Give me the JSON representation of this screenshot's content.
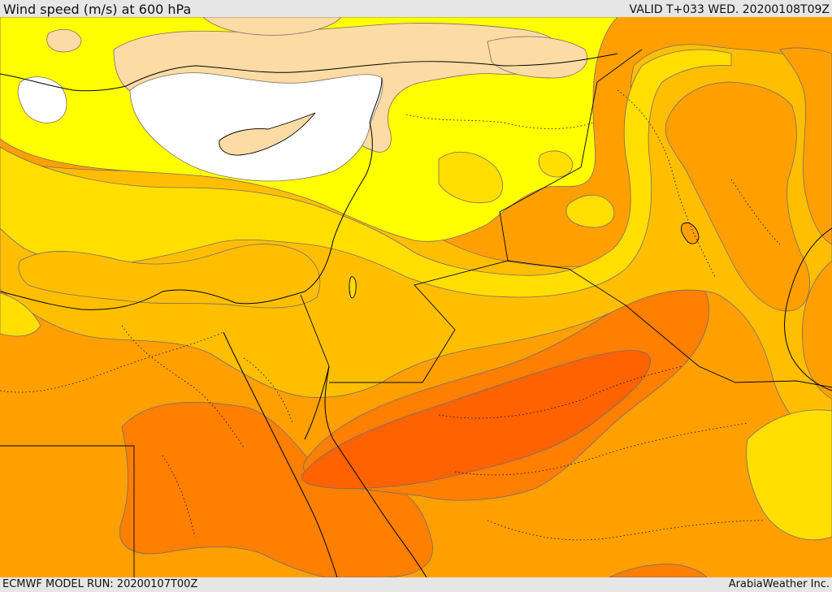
{
  "header": {
    "title": "Wind speed (m/s) at 600 hPa",
    "valid_time": "VALID T+033 WED. 20200108T09Z"
  },
  "footer": {
    "model_run": "ECMWF MODEL RUN: 20200107T00Z",
    "credit": "ArabiaWeather Inc."
  },
  "map": {
    "variable": "wind speed",
    "level_hpa": 600,
    "units": "m/s",
    "palette": {
      "white": "#ffffff",
      "pale": "#fcdba4",
      "yellow": "#ffff00",
      "gold": "#ffde00",
      "amber": "#ffbf00",
      "orange": "#ffa000",
      "deep_orange": "#ff7f00",
      "red_orange": "#ff6200",
      "border": "#000000",
      "contour": "#7a6a66"
    }
  }
}
